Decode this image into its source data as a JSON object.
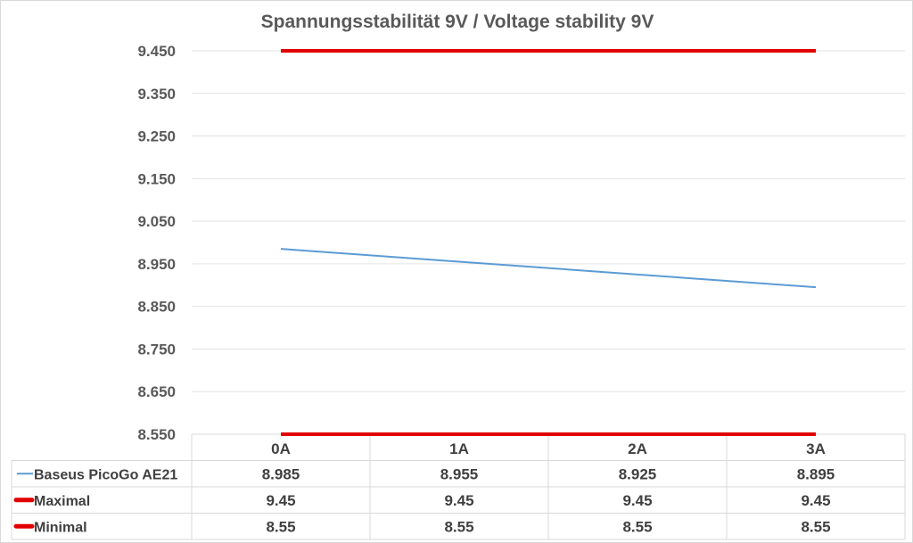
{
  "chart_data": {
    "type": "line",
    "title": "Spannungsstabilität 9V / Voltage stability 9V",
    "categories": [
      "0A",
      "1A",
      "2A",
      "3A"
    ],
    "y_ticks": [
      "9.450",
      "9.350",
      "9.250",
      "9.150",
      "9.050",
      "8.950",
      "8.850",
      "8.750",
      "8.650",
      "8.550"
    ],
    "ylim": [
      8.55,
      9.45
    ],
    "grid": true,
    "legend": "data-table-below",
    "series": [
      {
        "name": "Baseus PicoGo AE21",
        "values": [
          8.985,
          8.955,
          8.925,
          8.895
        ],
        "labels": [
          "8.985",
          "8.955",
          "8.925",
          "8.895"
        ],
        "color": "#5b9bd5"
      },
      {
        "name": "Maximal",
        "values": [
          9.45,
          9.45,
          9.45,
          9.45
        ],
        "labels": [
          "9.45",
          "9.45",
          "9.45",
          "9.45"
        ],
        "color": "#e00000"
      },
      {
        "name": "Minimal",
        "values": [
          8.55,
          8.55,
          8.55,
          8.55
        ],
        "labels": [
          "8.55",
          "8.55",
          "8.55",
          "8.55"
        ],
        "color": "#e00000"
      }
    ]
  }
}
